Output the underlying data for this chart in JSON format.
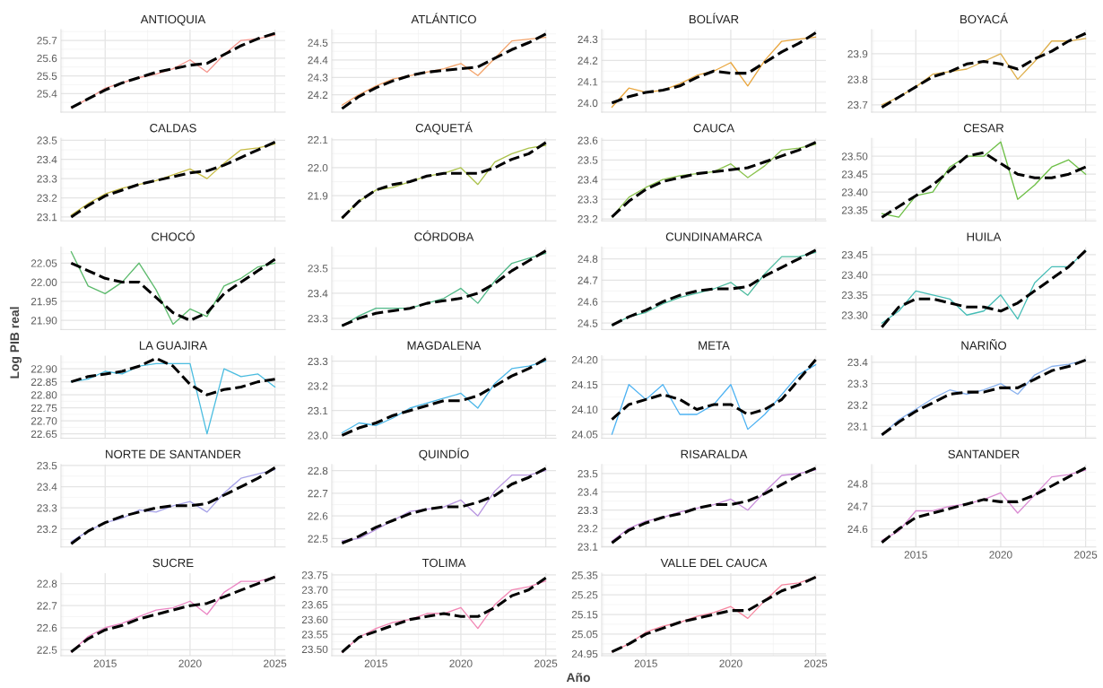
{
  "chart_data": [
    {
      "type": "line",
      "title": "ANTIOQUIA",
      "x": [
        2013,
        2014,
        2015,
        2016,
        2017,
        2018,
        2019,
        2020,
        2021,
        2022,
        2023,
        2024,
        2025
      ],
      "xlim": [
        2012.4,
        2025.6
      ],
      "xticks": [
        2015,
        2020,
        2025
      ],
      "ylim": [
        25.295,
        25.761
      ],
      "yticks": [
        25.4,
        25.5,
        25.6,
        25.7
      ],
      "grid": true,
      "tick_labels": "y",
      "series": [
        {
          "color": "#f5978f",
          "values": [
            25.32,
            25.37,
            25.43,
            25.46,
            25.49,
            25.51,
            25.54,
            25.59,
            25.52,
            25.62,
            25.7,
            25.71,
            25.73
          ]
        },
        {
          "color": "#000000",
          "line_style": "dashed",
          "values": [
            25.32,
            25.37,
            25.42,
            25.46,
            25.49,
            25.52,
            25.54,
            25.56,
            25.57,
            25.62,
            25.67,
            25.71,
            25.74
          ]
        }
      ]
    },
    {
      "type": "line",
      "title": "ATLÁNTICO",
      "x": [
        2013,
        2014,
        2015,
        2016,
        2017,
        2018,
        2019,
        2020,
        2021,
        2022,
        2023,
        2024,
        2025
      ],
      "xlim": [
        2012.4,
        2025.6
      ],
      "xticks": [
        2015,
        2020,
        2025
      ],
      "ylim": [
        24.1,
        24.575
      ],
      "yticks": [
        24.2,
        24.3,
        24.4,
        24.5
      ],
      "grid": true,
      "tick_labels": "y",
      "series": [
        {
          "color": "#f3a36a",
          "values": [
            24.14,
            24.2,
            24.25,
            24.29,
            24.31,
            24.33,
            24.35,
            24.38,
            24.31,
            24.41,
            24.51,
            24.52,
            24.53
          ]
        },
        {
          "color": "#000000",
          "line_style": "dashed",
          "values": [
            24.12,
            24.19,
            24.24,
            24.28,
            24.31,
            24.33,
            24.34,
            24.35,
            24.36,
            24.41,
            24.46,
            24.5,
            24.55
          ]
        }
      ]
    },
    {
      "type": "line",
      "title": "BOLÍVAR",
      "x": [
        2013,
        2014,
        2015,
        2016,
        2017,
        2018,
        2019,
        2020,
        2021,
        2022,
        2023,
        2024,
        2025
      ],
      "xlim": [
        2012.4,
        2025.6
      ],
      "xticks": [
        2015,
        2020,
        2025
      ],
      "ylim": [
        23.957,
        24.345
      ],
      "yticks": [
        {
          "value": 24,
          "label": "24.0"
        },
        24.1,
        24.2,
        24.3
      ],
      "grid": true,
      "tick_labels": "y",
      "series": [
        {
          "color": "#e9a63e",
          "values": [
            23.98,
            24.07,
            24.05,
            24.06,
            24.09,
            24.13,
            24.15,
            24.19,
            24.08,
            24.2,
            24.29,
            24.3,
            24.31
          ]
        },
        {
          "color": "#000000",
          "line_style": "dashed",
          "values": [
            24.0,
            24.03,
            24.05,
            24.06,
            24.08,
            24.12,
            24.15,
            24.14,
            24.14,
            24.19,
            24.24,
            24.28,
            24.33
          ]
        }
      ]
    },
    {
      "type": "line",
      "title": "BOYACÁ",
      "x": [
        2013,
        2014,
        2015,
        2016,
        2017,
        2018,
        2019,
        2020,
        2021,
        2022,
        2023,
        2024,
        2025
      ],
      "xlim": [
        2012.4,
        2025.6
      ],
      "xticks": [
        2015,
        2020,
        2025
      ],
      "ylim": [
        23.671,
        23.995
      ],
      "yticks": [
        23.7,
        23.8,
        23.9
      ],
      "grid": true,
      "tick_labels": "y",
      "series": [
        {
          "color": "#deaf4c",
          "values": [
            23.7,
            23.73,
            23.77,
            23.82,
            23.83,
            23.84,
            23.87,
            23.9,
            23.8,
            23.87,
            23.95,
            23.95,
            23.96
          ]
        },
        {
          "color": "#000000",
          "line_style": "dashed",
          "values": [
            23.69,
            23.73,
            23.77,
            23.81,
            23.83,
            23.86,
            23.87,
            23.86,
            23.84,
            23.88,
            23.91,
            23.95,
            23.98
          ]
        }
      ]
    },
    {
      "type": "line",
      "title": "CALDAS",
      "x": [
        2013,
        2014,
        2015,
        2016,
        2017,
        2018,
        2019,
        2020,
        2021,
        2022,
        2023,
        2024,
        2025
      ],
      "xlim": [
        2012.4,
        2025.6
      ],
      "xticks": [
        2015,
        2020,
        2025
      ],
      "ylim": [
        23.08,
        23.51
      ],
      "yticks": [
        23.1,
        23.2,
        23.3,
        23.4,
        23.5
      ],
      "grid": true,
      "tick_labels": "y",
      "series": [
        {
          "color": "#c7bc45",
          "values": [
            23.11,
            23.17,
            23.22,
            23.25,
            23.27,
            23.29,
            23.32,
            23.35,
            23.3,
            23.38,
            23.45,
            23.46,
            23.48
          ]
        },
        {
          "color": "#000000",
          "line_style": "dashed",
          "values": [
            23.1,
            23.16,
            23.21,
            23.24,
            23.27,
            23.29,
            23.31,
            23.33,
            23.34,
            23.37,
            23.41,
            23.45,
            23.49
          ]
        }
      ]
    },
    {
      "type": "line",
      "title": "CAQUETÁ",
      "x": [
        2013,
        2014,
        2015,
        2016,
        2017,
        2018,
        2019,
        2020,
        2021,
        2022,
        2023,
        2024,
        2025
      ],
      "xlim": [
        2012.4,
        2025.6
      ],
      "xticks": [
        2015,
        2020,
        2025
      ],
      "ylim": [
        21.81,
        22.105
      ],
      "yticks": [
        21.9,
        {
          "value": 22,
          "label": "22.0"
        },
        22.1
      ],
      "grid": true,
      "tick_labels": "y",
      "series": [
        {
          "color": "#abc24b",
          "values": [
            21.82,
            21.88,
            21.92,
            21.93,
            21.95,
            21.97,
            21.98,
            22.0,
            21.94,
            22.02,
            22.05,
            22.07,
            22.08
          ]
        },
        {
          "color": "#000000",
          "line_style": "dashed",
          "values": [
            21.82,
            21.88,
            21.92,
            21.94,
            21.95,
            21.97,
            21.98,
            21.98,
            21.98,
            22.0,
            22.03,
            22.05,
            22.09
          ]
        }
      ]
    },
    {
      "type": "line",
      "title": "CAUCA",
      "x": [
        2013,
        2014,
        2015,
        2016,
        2017,
        2018,
        2019,
        2020,
        2021,
        2022,
        2023,
        2024,
        2025
      ],
      "xlim": [
        2012.4,
        2025.6
      ],
      "xticks": [
        2015,
        2020,
        2025
      ],
      "ylim": [
        23.19,
        23.61
      ],
      "yticks": [
        23.2,
        23.3,
        23.4,
        23.5,
        23.6
      ],
      "grid": true,
      "tick_labels": "y",
      "series": [
        {
          "color": "#8cc34f",
          "values": [
            23.21,
            23.31,
            23.36,
            23.4,
            23.42,
            23.43,
            23.44,
            23.48,
            23.41,
            23.47,
            23.55,
            23.56,
            23.58
          ]
        },
        {
          "color": "#000000",
          "line_style": "dashed",
          "values": [
            23.21,
            23.29,
            23.35,
            23.39,
            23.41,
            23.43,
            23.44,
            23.45,
            23.46,
            23.49,
            23.52,
            23.55,
            23.59
          ]
        }
      ]
    },
    {
      "type": "line",
      "title": "CESAR",
      "x": [
        2013,
        2014,
        2015,
        2016,
        2017,
        2018,
        2019,
        2020,
        2021,
        2022,
        2023,
        2024,
        2025
      ],
      "xlim": [
        2012.4,
        2025.6
      ],
      "xticks": [
        2015,
        2020,
        2025
      ],
      "ylim": [
        23.32,
        23.55
      ],
      "yticks": [
        23.35,
        {
          "value": 23.4,
          "label": "23.40"
        },
        23.45,
        {
          "value": 23.5,
          "label": "23.50"
        }
      ],
      "grid": true,
      "tick_labels": "y",
      "series": [
        {
          "color": "#6dbf46",
          "values": [
            23.34,
            23.33,
            23.39,
            23.4,
            23.47,
            23.5,
            23.5,
            23.54,
            23.38,
            23.42,
            23.47,
            23.49,
            23.45
          ]
        },
        {
          "color": "#000000",
          "line_style": "dashed",
          "values": [
            23.33,
            23.36,
            23.39,
            23.42,
            23.46,
            23.5,
            23.51,
            23.48,
            23.45,
            23.44,
            23.44,
            23.45,
            23.47
          ]
        }
      ]
    },
    {
      "type": "line",
      "title": "CHOCÓ",
      "x": [
        2013,
        2014,
        2015,
        2016,
        2017,
        2018,
        2019,
        2020,
        2021,
        2022,
        2023,
        2024,
        2025
      ],
      "xlim": [
        2012.4,
        2025.6
      ],
      "xticks": [
        2015,
        2020,
        2025
      ],
      "ylim": [
        21.876,
        22.092
      ],
      "yticks": [
        {
          "value": 21.9,
          "label": "21.90"
        },
        21.95,
        {
          "value": 22,
          "label": "22.00"
        },
        22.05
      ],
      "grid": true,
      "tick_labels": "y",
      "series": [
        {
          "color": "#5cba6c",
          "values": [
            22.08,
            21.99,
            21.97,
            22.0,
            22.05,
            21.98,
            21.89,
            21.93,
            21.91,
            21.99,
            22.01,
            22.04,
            22.05
          ]
        },
        {
          "color": "#000000",
          "line_style": "dashed",
          "values": [
            22.05,
            22.03,
            22.01,
            22.0,
            22.0,
            21.96,
            21.92,
            21.9,
            21.92,
            21.97,
            22.0,
            22.03,
            22.06
          ]
        }
      ]
    },
    {
      "type": "line",
      "title": "CÓRDOBA",
      "x": [
        2013,
        2014,
        2015,
        2016,
        2017,
        2018,
        2019,
        2020,
        2021,
        2022,
        2023,
        2024,
        2025
      ],
      "xlim": [
        2012.4,
        2025.6
      ],
      "xticks": [
        2015,
        2020,
        2025
      ],
      "ylim": [
        23.255,
        23.585
      ],
      "yticks": [
        23.3,
        23.4,
        23.5
      ],
      "grid": true,
      "tick_labels": "y",
      "series": [
        {
          "color": "#50b988",
          "values": [
            23.27,
            23.31,
            23.34,
            23.34,
            23.34,
            23.36,
            23.38,
            23.42,
            23.36,
            23.45,
            23.52,
            23.54,
            23.56
          ]
        },
        {
          "color": "#000000",
          "line_style": "dashed",
          "values": [
            23.27,
            23.3,
            23.32,
            23.33,
            23.34,
            23.36,
            23.37,
            23.38,
            23.4,
            23.44,
            23.49,
            23.53,
            23.57
          ]
        }
      ]
    },
    {
      "type": "line",
      "title": "CUNDINAMARCA",
      "x": [
        2013,
        2014,
        2015,
        2016,
        2017,
        2018,
        2019,
        2020,
        2021,
        2022,
        2023,
        2024,
        2025
      ],
      "xlim": [
        2012.4,
        2025.6
      ],
      "xticks": [
        2015,
        2020,
        2025
      ],
      "ylim": [
        24.47,
        24.855
      ],
      "yticks": [
        24.5,
        24.6,
        24.7,
        24.8
      ],
      "grid": true,
      "tick_labels": "y",
      "series": [
        {
          "color": "#4dbc9f",
          "values": [
            24.49,
            24.53,
            24.55,
            24.59,
            24.62,
            24.64,
            24.66,
            24.69,
            24.63,
            24.73,
            24.81,
            24.81,
            24.83
          ]
        },
        {
          "color": "#000000",
          "line_style": "dashed",
          "values": [
            24.49,
            24.53,
            24.56,
            24.6,
            24.63,
            24.65,
            24.66,
            24.66,
            24.67,
            24.72,
            24.76,
            24.8,
            24.84
          ]
        }
      ]
    },
    {
      "type": "line",
      "title": "HUILA",
      "x": [
        2013,
        2014,
        2015,
        2016,
        2017,
        2018,
        2019,
        2020,
        2021,
        2022,
        2023,
        2024,
        2025
      ],
      "xlim": [
        2012.4,
        2025.6
      ],
      "xticks": [
        2015,
        2020,
        2025
      ],
      "ylim": [
        23.264,
        23.469
      ],
      "yticks": [
        {
          "value": 23.3,
          "label": "23.30"
        },
        23.35,
        {
          "value": 23.4,
          "label": "23.40"
        },
        23.45
      ],
      "grid": true,
      "tick_labels": "y",
      "series": [
        {
          "color": "#46bdb6",
          "values": [
            23.28,
            23.31,
            23.36,
            23.35,
            23.34,
            23.3,
            23.31,
            23.35,
            23.29,
            23.38,
            23.42,
            23.42,
            23.46
          ]
        },
        {
          "color": "#000000",
          "line_style": "dashed",
          "values": [
            23.27,
            23.32,
            23.34,
            23.34,
            23.33,
            23.32,
            23.32,
            23.31,
            23.33,
            23.36,
            23.39,
            23.42,
            23.46
          ]
        }
      ]
    },
    {
      "type": "line",
      "title": "LA GUAJIRA",
      "ylabel": "Log PIB real",
      "x": [
        2013,
        2014,
        2015,
        2016,
        2017,
        2018,
        2019,
        2020,
        2021,
        2022,
        2023,
        2024,
        2025
      ],
      "xlim": [
        2012.4,
        2025.6
      ],
      "xticks": [
        2015,
        2020,
        2025
      ],
      "ylim": [
        22.633,
        22.95
      ],
      "yticks": [
        22.65,
        {
          "value": 22.7,
          "label": "22.70"
        },
        22.75,
        {
          "value": 22.8,
          "label": "22.80"
        },
        22.85,
        {
          "value": 22.9,
          "label": "22.90"
        }
      ],
      "grid": true,
      "tick_labels": "y",
      "series": [
        {
          "color": "#4bbde0",
          "values": [
            22.85,
            22.86,
            22.89,
            22.88,
            22.91,
            22.92,
            22.92,
            22.92,
            22.65,
            22.9,
            22.87,
            22.88,
            22.83
          ]
        },
        {
          "color": "#000000",
          "line_style": "dashed",
          "values": [
            22.85,
            22.87,
            22.88,
            22.89,
            22.91,
            22.94,
            22.91,
            22.84,
            22.8,
            22.82,
            22.83,
            22.85,
            22.86
          ]
        }
      ]
    },
    {
      "type": "line",
      "title": "MAGDALENA",
      "x": [
        2013,
        2014,
        2015,
        2016,
        2017,
        2018,
        2019,
        2020,
        2021,
        2022,
        2023,
        2024,
        2025
      ],
      "xlim": [
        2012.4,
        2025.6
      ],
      "xticks": [
        2015,
        2020,
        2025
      ],
      "ylim": [
        22.988,
        23.322
      ],
      "yticks": [
        {
          "value": 23,
          "label": "23.0"
        },
        23.1,
        23.2,
        23.3
      ],
      "grid": true,
      "tick_labels": "y",
      "series": [
        {
          "color": "#4db8e8",
          "values": [
            23.01,
            23.05,
            23.04,
            23.07,
            23.11,
            23.13,
            23.15,
            23.17,
            23.11,
            23.21,
            23.27,
            23.28,
            23.3
          ]
        },
        {
          "color": "#000000",
          "line_style": "dashed",
          "values": [
            23.0,
            23.03,
            23.05,
            23.08,
            23.1,
            23.12,
            23.14,
            23.14,
            23.16,
            23.2,
            23.24,
            23.27,
            23.31
          ]
        }
      ]
    },
    {
      "type": "line",
      "title": "META",
      "x": [
        2013,
        2014,
        2015,
        2016,
        2017,
        2018,
        2019,
        2020,
        2021,
        2022,
        2023,
        2024,
        2025
      ],
      "xlim": [
        2012.4,
        2025.6
      ],
      "xticks": [
        2015,
        2020,
        2025
      ],
      "ylim": [
        24.042,
        24.208
      ],
      "yticks": [
        24.05,
        {
          "value": 24.1,
          "label": "24.10"
        },
        24.15,
        {
          "value": 24.2,
          "label": "24.20"
        }
      ],
      "grid": true,
      "tick_labels": "y",
      "series": [
        {
          "color": "#4db2f2",
          "values": [
            24.05,
            24.15,
            24.12,
            24.15,
            24.09,
            24.09,
            24.11,
            24.15,
            24.06,
            24.09,
            24.13,
            24.17,
            24.19
          ]
        },
        {
          "color": "#000000",
          "line_style": "dashed",
          "values": [
            24.08,
            24.11,
            24.12,
            24.13,
            24.12,
            24.1,
            24.11,
            24.11,
            24.09,
            24.1,
            24.12,
            24.16,
            24.2
          ]
        }
      ]
    },
    {
      "type": "line",
      "title": "NARIÑO",
      "x": [
        2013,
        2014,
        2015,
        2016,
        2017,
        2018,
        2019,
        2020,
        2021,
        2022,
        2023,
        2024,
        2025
      ],
      "xlim": [
        2012.4,
        2025.6
      ],
      "xticks": [
        2015,
        2020,
        2025
      ],
      "ylim": [
        23.044,
        23.43
      ],
      "yticks": [
        23.1,
        23.2,
        23.3,
        23.4
      ],
      "grid": true,
      "tick_labels": "y",
      "series": [
        {
          "color": "#8bb3ef",
          "values": [
            23.06,
            23.13,
            23.18,
            23.23,
            23.27,
            23.25,
            23.27,
            23.3,
            23.25,
            23.34,
            23.38,
            23.39,
            23.41
          ]
        },
        {
          "color": "#000000",
          "line_style": "dashed",
          "values": [
            23.06,
            23.12,
            23.17,
            23.21,
            23.25,
            23.26,
            23.26,
            23.28,
            23.28,
            23.32,
            23.36,
            23.38,
            23.41
          ]
        }
      ]
    },
    {
      "type": "line",
      "title": "NORTE DE SANTANDER",
      "x": [
        2013,
        2014,
        2015,
        2016,
        2017,
        2018,
        2019,
        2020,
        2021,
        2022,
        2023,
        2024,
        2025
      ],
      "xlim": [
        2012.4,
        2025.6
      ],
      "xticks": [
        2015,
        2020,
        2025
      ],
      "ylim": [
        23.115,
        23.505
      ],
      "yticks": [
        23.2,
        23.3,
        23.4,
        23.5
      ],
      "grid": true,
      "tick_labels": "y",
      "series": [
        {
          "color": "#a7a3e8",
          "values": [
            23.14,
            23.19,
            23.23,
            23.25,
            23.29,
            23.28,
            23.31,
            23.33,
            23.28,
            23.37,
            23.44,
            23.46,
            23.48
          ]
        },
        {
          "color": "#000000",
          "line_style": "dashed",
          "values": [
            23.13,
            23.19,
            23.23,
            23.26,
            23.28,
            23.3,
            23.31,
            23.31,
            23.32,
            23.36,
            23.4,
            23.44,
            23.49
          ]
        }
      ]
    },
    {
      "type": "line",
      "title": "QUINDÍO",
      "x": [
        2013,
        2014,
        2015,
        2016,
        2017,
        2018,
        2019,
        2020,
        2021,
        2022,
        2023,
        2024,
        2025
      ],
      "xlim": [
        2012.4,
        2025.6
      ],
      "xticks": [
        2015,
        2020,
        2025
      ],
      "ylim": [
        22.463,
        22.827
      ],
      "yticks": [
        22.5,
        22.6,
        22.7,
        22.8
      ],
      "grid": true,
      "tick_labels": "y",
      "series": [
        {
          "color": "#b997e1",
          "values": [
            22.49,
            22.5,
            22.54,
            22.58,
            22.62,
            22.63,
            22.64,
            22.67,
            22.6,
            22.71,
            22.78,
            22.78,
            22.8
          ]
        },
        {
          "color": "#000000",
          "line_style": "dashed",
          "values": [
            22.48,
            22.51,
            22.55,
            22.58,
            22.61,
            22.63,
            22.64,
            22.64,
            22.66,
            22.69,
            22.74,
            22.77,
            22.81
          ]
        }
      ]
    },
    {
      "type": "line",
      "title": "RISARALDA",
      "x": [
        2013,
        2014,
        2015,
        2016,
        2017,
        2018,
        2019,
        2020,
        2021,
        2022,
        2023,
        2024,
        2025
      ],
      "xlim": [
        2012.4,
        2025.6
      ],
      "xticks": [
        2015,
        2020,
        2025
      ],
      "ylim": [
        23.098,
        23.55
      ],
      "yticks": [
        23.1,
        23.2,
        23.3,
        23.4,
        23.5
      ],
      "grid": true,
      "tick_labels": "y",
      "series": [
        {
          "color": "#c98fdb",
          "values": [
            23.13,
            23.2,
            23.24,
            23.26,
            23.29,
            23.31,
            23.33,
            23.36,
            23.3,
            23.4,
            23.49,
            23.5,
            23.52
          ]
        },
        {
          "color": "#000000",
          "line_style": "dashed",
          "values": [
            23.12,
            23.19,
            23.23,
            23.26,
            23.28,
            23.31,
            23.33,
            23.33,
            23.35,
            23.39,
            23.44,
            23.49,
            23.53
          ]
        }
      ]
    },
    {
      "type": "line",
      "title": "SANTANDER",
      "x": [
        2013,
        2014,
        2015,
        2016,
        2017,
        2018,
        2019,
        2020,
        2021,
        2022,
        2023,
        2024,
        2025
      ],
      "xlim": [
        2012.4,
        2025.6
      ],
      "xticks": [
        2015,
        2020,
        2025
      ],
      "ylim": [
        24.52,
        24.885
      ],
      "yticks": [
        24.6,
        24.7,
        24.8
      ],
      "grid": true,
      "series": [
        {
          "color": "#da8cd3",
          "values": [
            24.55,
            24.59,
            24.68,
            24.68,
            24.7,
            24.71,
            24.73,
            24.76,
            24.67,
            24.75,
            24.83,
            24.84,
            24.86
          ]
        },
        {
          "color": "#000000",
          "line_style": "dashed",
          "values": [
            24.54,
            24.6,
            24.65,
            24.67,
            24.69,
            24.71,
            24.73,
            24.72,
            24.72,
            24.75,
            24.79,
            24.83,
            24.87
          ]
        }
      ]
    },
    {
      "type": "line",
      "title": "SUCRE",
      "x": [
        2013,
        2014,
        2015,
        2016,
        2017,
        2018,
        2019,
        2020,
        2021,
        2022,
        2023,
        2024,
        2025
      ],
      "xlim": [
        2012.4,
        2025.6
      ],
      "xticks": [
        2015,
        2020,
        2025
      ],
      "ylim": [
        22.473,
        22.847
      ],
      "yticks": [
        22.5,
        22.6,
        22.7,
        22.8
      ],
      "grid": true,
      "series": [
        {
          "color": "#eb86c4",
          "values": [
            22.49,
            22.56,
            22.6,
            22.62,
            22.65,
            22.68,
            22.69,
            22.72,
            22.66,
            22.76,
            22.81,
            22.81,
            22.83
          ]
        },
        {
          "color": "#000000",
          "line_style": "dashed",
          "values": [
            22.49,
            22.55,
            22.59,
            22.61,
            22.64,
            22.66,
            22.68,
            22.7,
            22.71,
            22.74,
            22.77,
            22.8,
            22.83
          ]
        }
      ]
    },
    {
      "type": "line",
      "title": "TOLIMA",
      "xlabel": "Año",
      "x": [
        2013,
        2014,
        2015,
        2016,
        2017,
        2018,
        2019,
        2020,
        2021,
        2022,
        2023,
        2024,
        2025
      ],
      "xlim": [
        2012.4,
        2025.6
      ],
      "xticks": [
        2015,
        2020,
        2025
      ],
      "ylim": [
        23.478,
        23.756
      ],
      "yticks": [
        {
          "value": 23.5,
          "label": "23.50"
        },
        23.55,
        {
          "value": 23.6,
          "label": "23.60"
        },
        23.65,
        {
          "value": 23.7,
          "label": "23.70"
        },
        23.75
      ],
      "grid": true,
      "series": [
        {
          "color": "#f286b4",
          "values": [
            23.49,
            23.54,
            23.57,
            23.59,
            23.6,
            23.62,
            23.62,
            23.64,
            23.57,
            23.65,
            23.7,
            23.71,
            23.73
          ]
        },
        {
          "color": "#000000",
          "line_style": "dashed",
          "values": [
            23.49,
            23.54,
            23.56,
            23.58,
            23.6,
            23.61,
            23.62,
            23.61,
            23.61,
            23.64,
            23.68,
            23.7,
            23.74
          ]
        }
      ]
    },
    {
      "type": "line",
      "title": "VALLE DEL CAUCA",
      "x": [
        2013,
        2014,
        2015,
        2016,
        2017,
        2018,
        2019,
        2020,
        2021,
        2022,
        2023,
        2024,
        2025
      ],
      "xlim": [
        2012.4,
        2025.6
      ],
      "xticks": [
        2015,
        2020,
        2025
      ],
      "ylim": [
        24.94,
        25.36
      ],
      "yticks": [
        24.95,
        25.05,
        25.15,
        25.25,
        25.35
      ],
      "grid": true,
      "series": [
        {
          "color": "#f6869f",
          "values": [
            24.96,
            25.0,
            25.06,
            25.09,
            25.11,
            25.14,
            25.16,
            25.19,
            25.13,
            25.22,
            25.3,
            25.31,
            25.34
          ]
        },
        {
          "color": "#000000",
          "line_style": "dashed",
          "values": [
            24.96,
            25.0,
            25.05,
            25.08,
            25.11,
            25.13,
            25.15,
            25.17,
            25.17,
            25.22,
            25.27,
            25.3,
            25.34
          ]
        }
      ]
    }
  ]
}
